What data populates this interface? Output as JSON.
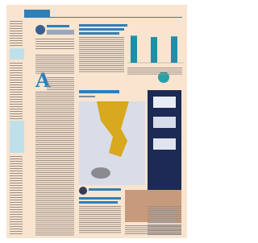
{
  "mini_chart": {
    "type": "bar",
    "color": "#1f8fa8",
    "values": [
      80,
      76,
      78
    ]
  }
}
